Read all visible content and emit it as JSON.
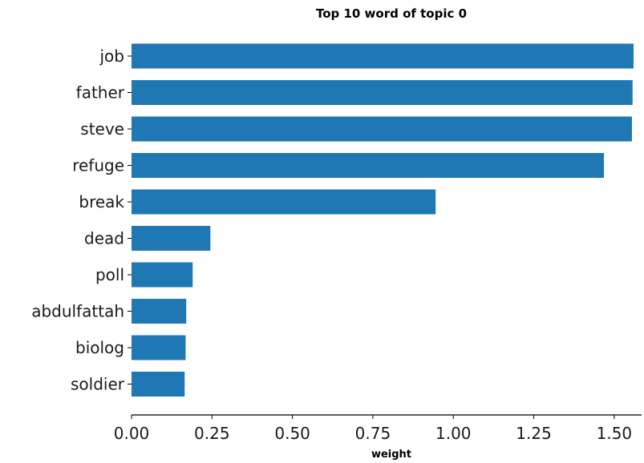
{
  "chart_data": {
    "type": "bar",
    "orientation": "horizontal",
    "title": "Top 10 word of topic 0",
    "xlabel": "weight",
    "ylabel": "",
    "categories": [
      "job",
      "father",
      "steve",
      "refuge",
      "break",
      "dead",
      "poll",
      "abdulfattah",
      "biolog",
      "soldier"
    ],
    "values": [
      1.56,
      1.557,
      1.555,
      1.468,
      0.945,
      0.245,
      0.19,
      0.17,
      0.168,
      0.165
    ],
    "xlim": [
      0,
      1.6
    ],
    "xticks": [
      "0.00",
      "0.25",
      "0.50",
      "0.75",
      "1.00",
      "1.25",
      "1.50"
    ],
    "bar_color": "#1f77b4",
    "grid": false,
    "legend": "none"
  }
}
